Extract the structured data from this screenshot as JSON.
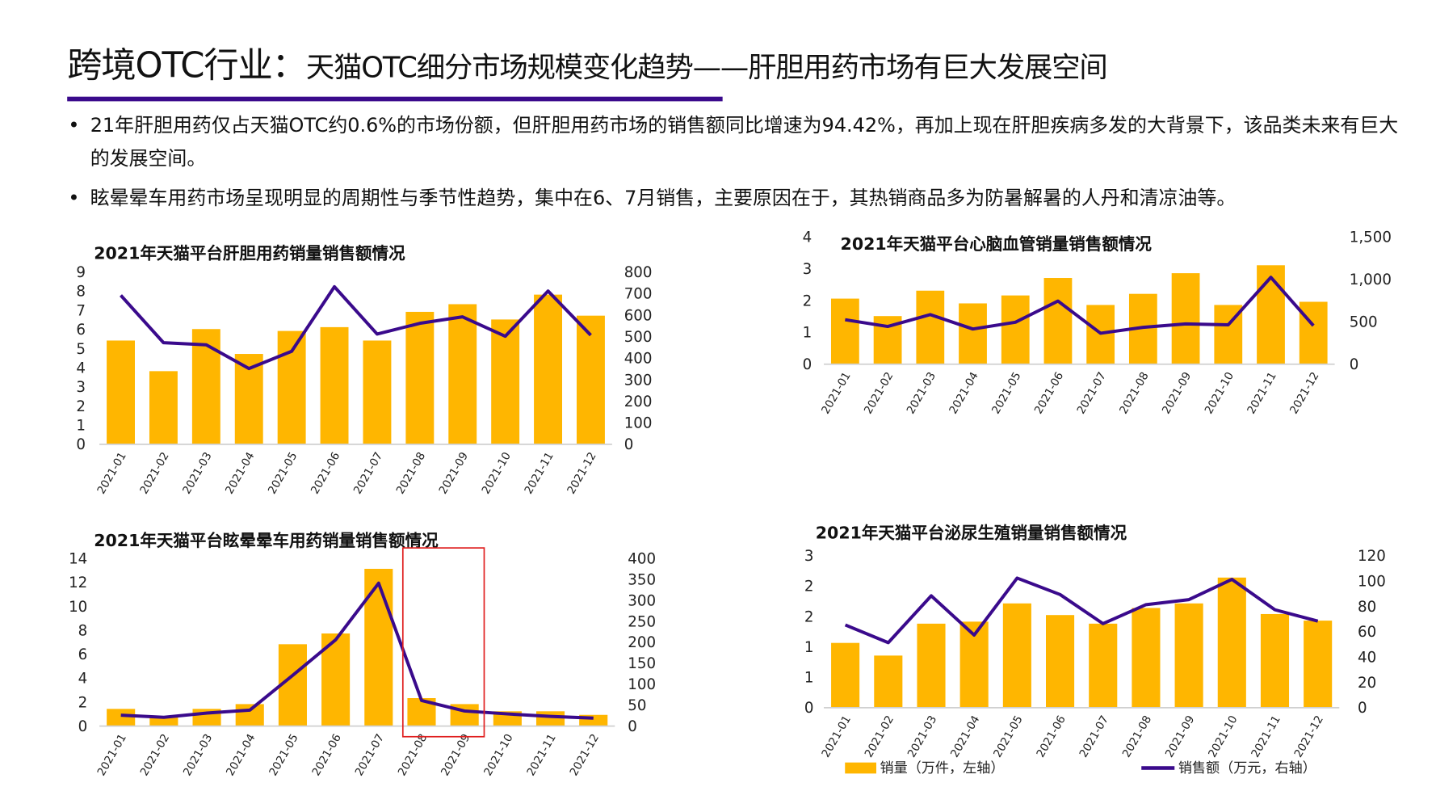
{
  "header": {
    "title_main": "跨境OTC行业：",
    "title_sub": "天猫OTC细分市场规模变化趋势——肝胆用药市场有巨大发展空间"
  },
  "bullets": [
    "21年肝胆用药仅占天猫OTC约0.6%的市场份额，但肝胆用药市场的销售额同比增速为94.42%，再加上现在肝胆疾病多发的大背景下，该品类未来有巨大的发展空间。",
    "眩晕晕车用药市场呈现明显的周期性与季节性趋势，集中在6、7月销售，主要原因在于，其热销商品多为防暑解暑的人丹和清凉油等。"
  ],
  "bullet_symbol": "•",
  "colors": {
    "bar": "#ffb600",
    "line": "#3a0a8c",
    "accent": "#3a0a8c",
    "highlight": "#e02020",
    "axis": "#d0d0d0"
  },
  "legend": {
    "bar_label": "销量（万件，左轴）",
    "line_label": "销售额（万元，右轴）",
    "position": "bottom"
  },
  "chart_data": [
    {
      "type": "bar+line",
      "title": "2021年天猫平台肝胆用药销量销售额情况",
      "categories": [
        "2021-01",
        "2021-02",
        "2021-03",
        "2021-04",
        "2021-05",
        "2021-06",
        "2021-07",
        "2021-08",
        "2021-09",
        "2021-10",
        "2021-11",
        "2021-12"
      ],
      "series": [
        {
          "name": "销量（万件，左轴）",
          "type": "bar",
          "axis": "left",
          "values": [
            5.4,
            3.8,
            6.0,
            4.7,
            5.9,
            6.1,
            5.4,
            6.9,
            7.3,
            6.5,
            7.8,
            6.7
          ]
        },
        {
          "name": "销售额（万元，右轴）",
          "type": "line",
          "axis": "right",
          "values": [
            690,
            470,
            460,
            350,
            430,
            730,
            510,
            560,
            590,
            500,
            710,
            505
          ]
        }
      ],
      "ylim_left": [
        0,
        9
      ],
      "ylim_right": [
        0,
        800
      ],
      "yticks_left": [
        "0",
        "1",
        "2",
        "3",
        "4",
        "5",
        "6",
        "7",
        "8",
        "9"
      ],
      "yticks_right": [
        "0",
        "100",
        "200",
        "300",
        "400",
        "500",
        "600",
        "700",
        "800"
      ],
      "grid": false
    },
    {
      "type": "bar+line",
      "title": "2021年天猫平台心脑血管销量销售额情况",
      "categories": [
        "2021-01",
        "2021-02",
        "2021-03",
        "2021-04",
        "2021-05",
        "2021-06",
        "2021-07",
        "2021-08",
        "2021-09",
        "2021-10",
        "2021-11",
        "2021-12"
      ],
      "series": [
        {
          "name": "销量（万件，左轴）",
          "type": "bar",
          "axis": "left",
          "values": [
            2.05,
            1.5,
            2.3,
            1.9,
            2.15,
            2.7,
            1.85,
            2.2,
            2.85,
            1.85,
            3.1,
            1.95
          ]
        },
        {
          "name": "销售额（万元，右轴）",
          "type": "line",
          "axis": "right",
          "values": [
            520,
            440,
            580,
            410,
            490,
            740,
            360,
            430,
            470,
            460,
            1020,
            450
          ]
        }
      ],
      "ylim_left": [
        0,
        4
      ],
      "ylim_right": [
        0,
        1500
      ],
      "yticks_left": [
        "0",
        "1",
        "2",
        "3",
        "4"
      ],
      "yticks_right": [
        "0",
        "500",
        "1,000",
        "1,500"
      ],
      "grid": false
    },
    {
      "type": "bar+line",
      "title": "2021年天猫平台眩晕晕车用药销量销售额情况",
      "categories": [
        "2021-01",
        "2021-02",
        "2021-03",
        "2021-04",
        "2021-05",
        "2021-06",
        "2021-07",
        "2021-08",
        "2021-09",
        "2021-10",
        "2021-11",
        "2021-12"
      ],
      "series": [
        {
          "name": "销量（万件，左轴）",
          "type": "bar",
          "axis": "left",
          "values": [
            1.4,
            0.8,
            1.4,
            1.8,
            6.8,
            7.7,
            13.1,
            2.3,
            1.8,
            1.2,
            1.2,
            0.9
          ]
        },
        {
          "name": "销售额（万元，右轴）",
          "type": "line",
          "axis": "right",
          "values": [
            25,
            20,
            30,
            37,
            120,
            205,
            340,
            60,
            35,
            28,
            22,
            18
          ]
        }
      ],
      "ylim_left": [
        0,
        14
      ],
      "ylim_right": [
        0,
        400
      ],
      "yticks_left": [
        "0",
        "2",
        "4",
        "6",
        "8",
        "10",
        "12",
        "14"
      ],
      "yticks_right": [
        "0",
        "50",
        "100",
        "150",
        "200",
        "250",
        "300",
        "350",
        "400"
      ],
      "grid": false,
      "highlight": [
        "2021-08",
        "2021-09"
      ]
    },
    {
      "type": "bar+line",
      "title": "2021年天猫平台泌尿生殖销量销售额情况",
      "categories": [
        "2021-01",
        "2021-02",
        "2021-03",
        "2021-04",
        "2021-05",
        "2021-06",
        "2021-07",
        "2021-08",
        "2021-09",
        "2021-10",
        "2021-11",
        "2021-12"
      ],
      "series": [
        {
          "name": "销量（万件，左轴）",
          "type": "bar",
          "axis": "left",
          "values": [
            1.27,
            1.02,
            1.65,
            1.69,
            2.05,
            1.82,
            1.65,
            1.96,
            2.05,
            2.56,
            1.84,
            1.71
          ]
        },
        {
          "name": "销售额（万元，右轴）",
          "type": "line",
          "axis": "right",
          "values": [
            65,
            51,
            88,
            57,
            102,
            89,
            66,
            81,
            85,
            101,
            77,
            68
          ]
        }
      ],
      "ylim_left": [
        0,
        3
      ],
      "ylim_right": [
        0,
        120
      ],
      "yticks_left": [
        "0",
        "1",
        "1",
        "2",
        "2",
        "3"
      ],
      "yticks_right": [
        "0",
        "20",
        "40",
        "60",
        "80",
        "100",
        "120"
      ],
      "grid": false
    }
  ]
}
